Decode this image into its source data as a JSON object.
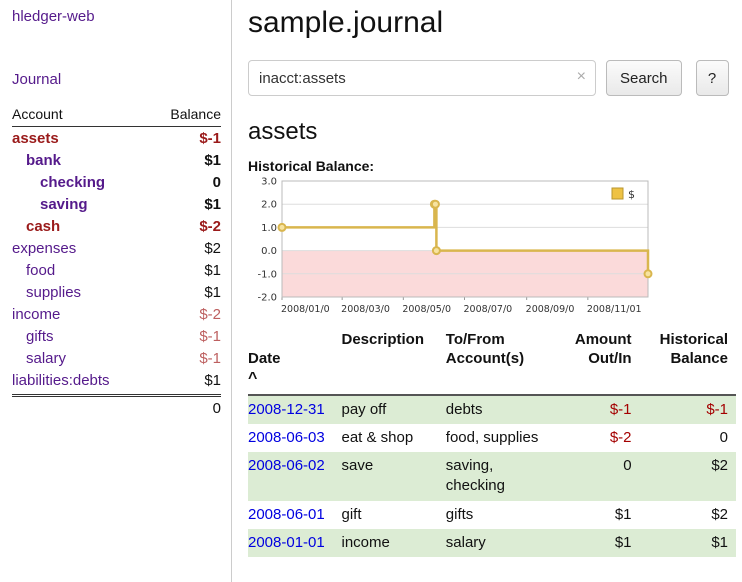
{
  "sidebar": {
    "brand": "hledger-web",
    "journal_link": "Journal",
    "accounts_header": {
      "account": "Account",
      "balance": "Balance"
    },
    "accounts": [
      {
        "name": "assets",
        "depth": 0,
        "name_style": "neg-bold",
        "balance": "$-1",
        "balance_style": "neg-bold"
      },
      {
        "name": "bank",
        "depth": 1,
        "name_style": "pos-bold",
        "balance": "$1",
        "balance_style": "pos-bold"
      },
      {
        "name": "checking",
        "depth": 2,
        "name_style": "pos-bold",
        "balance": "0",
        "balance_style": "pos-bold"
      },
      {
        "name": "saving",
        "depth": 2,
        "name_style": "pos-bold",
        "balance": "$1",
        "balance_style": "pos-bold"
      },
      {
        "name": "cash",
        "depth": 1,
        "name_style": "neg-bold",
        "balance": "$-2",
        "balance_style": "neg-bold"
      },
      {
        "name": "expenses",
        "depth": 0,
        "name_style": "plain",
        "balance": "$2",
        "balance_style": "pos"
      },
      {
        "name": "food",
        "depth": 1,
        "name_style": "plain",
        "balance": "$1",
        "balance_style": "pos"
      },
      {
        "name": "supplies",
        "depth": 1,
        "name_style": "plain",
        "balance": "$1",
        "balance_style": "pos"
      },
      {
        "name": "income",
        "depth": 0,
        "name_style": "plain",
        "balance": "$-2",
        "balance_style": "neg-light"
      },
      {
        "name": "gifts",
        "depth": 1,
        "name_style": "plain",
        "balance": "$-1",
        "balance_style": "neg-light"
      },
      {
        "name": "salary",
        "depth": 1,
        "name_style": "plain",
        "balance": "$-1",
        "balance_style": "neg-light"
      },
      {
        "name": "liabilities:debts",
        "depth": 0,
        "name_style": "plain",
        "balance": "$1",
        "balance_style": "pos"
      }
    ],
    "total": "0"
  },
  "main": {
    "title": "sample.journal",
    "search": {
      "value": "inacct:assets",
      "clear_icon": "×",
      "button_label": "Search",
      "help_label": "?"
    },
    "account_heading": "assets",
    "chart_label": "Historical Balance:"
  },
  "chart_data": {
    "type": "line",
    "step": true,
    "title": "Historical Balance",
    "x_start": "2008-01-01",
    "x_end": "2008-12-31",
    "ylim": [
      -2,
      3
    ],
    "yticks": [
      {
        "label": "3.0",
        "value": 3
      },
      {
        "label": "2.0",
        "value": 2
      },
      {
        "label": "1.0",
        "value": 1
      },
      {
        "label": "0.0",
        "value": 0
      },
      {
        "label": "-1.0",
        "value": -1
      },
      {
        "label": "-2.0",
        "value": -2
      }
    ],
    "xticks": [
      {
        "label": "2008/01/0",
        "date": "2008-01-01"
      },
      {
        "label": "2008/03/0",
        "date": "2008-03-01"
      },
      {
        "label": "2008/05/0",
        "date": "2008-05-01"
      },
      {
        "label": "2008/07/0",
        "date": "2008-07-01"
      },
      {
        "label": "2008/09/0",
        "date": "2008-09-01"
      },
      {
        "label": "2008/11/01",
        "date": "2008-11-01"
      }
    ],
    "series": [
      {
        "name": "$",
        "color": "#d9b64e",
        "marker_fill": "#f7e3a0",
        "points": [
          {
            "date": "2008-01-01",
            "value": 1
          },
          {
            "date": "2008-06-01",
            "value": 2
          },
          {
            "date": "2008-06-02",
            "value": 2
          },
          {
            "date": "2008-06-03",
            "value": 0
          },
          {
            "date": "2008-12-31",
            "value": -1
          }
        ]
      }
    ],
    "negative_fill": "#fbdada",
    "grid_color": "#dddddd",
    "legend": {
      "label": "$",
      "swatch_color": "#eec244",
      "position": "top-right"
    }
  },
  "transactions": {
    "headers": {
      "date": "Date",
      "sort_icon": "^",
      "description": "Description",
      "tofrom": "To/From\nAccount(s)",
      "amount": "Amount\nOut/In",
      "historical": "Historical\nBalance"
    },
    "rows": [
      {
        "date": "2008-12-31",
        "description": "pay off",
        "tofrom": "debts",
        "amount": "$-1",
        "amount_style": "neg",
        "historical": "$-1",
        "historical_style": "neg"
      },
      {
        "date": "2008-06-03",
        "description": "eat & shop",
        "tofrom": "food, supplies",
        "amount": "$-2",
        "amount_style": "neg",
        "historical": "0",
        "historical_style": "pos"
      },
      {
        "date": "2008-06-02",
        "description": "save",
        "tofrom": "saving,\nchecking",
        "amount": "0",
        "amount_style": "pos",
        "historical": "$2",
        "historical_style": "pos"
      },
      {
        "date": "2008-06-01",
        "description": "gift",
        "tofrom": "gifts",
        "amount": "$1",
        "amount_style": "pos",
        "historical": "$2",
        "historical_style": "pos"
      },
      {
        "date": "2008-01-01",
        "description": "income",
        "tofrom": "salary",
        "amount": "$1",
        "amount_style": "pos",
        "historical": "$1",
        "historical_style": "pos"
      }
    ]
  }
}
